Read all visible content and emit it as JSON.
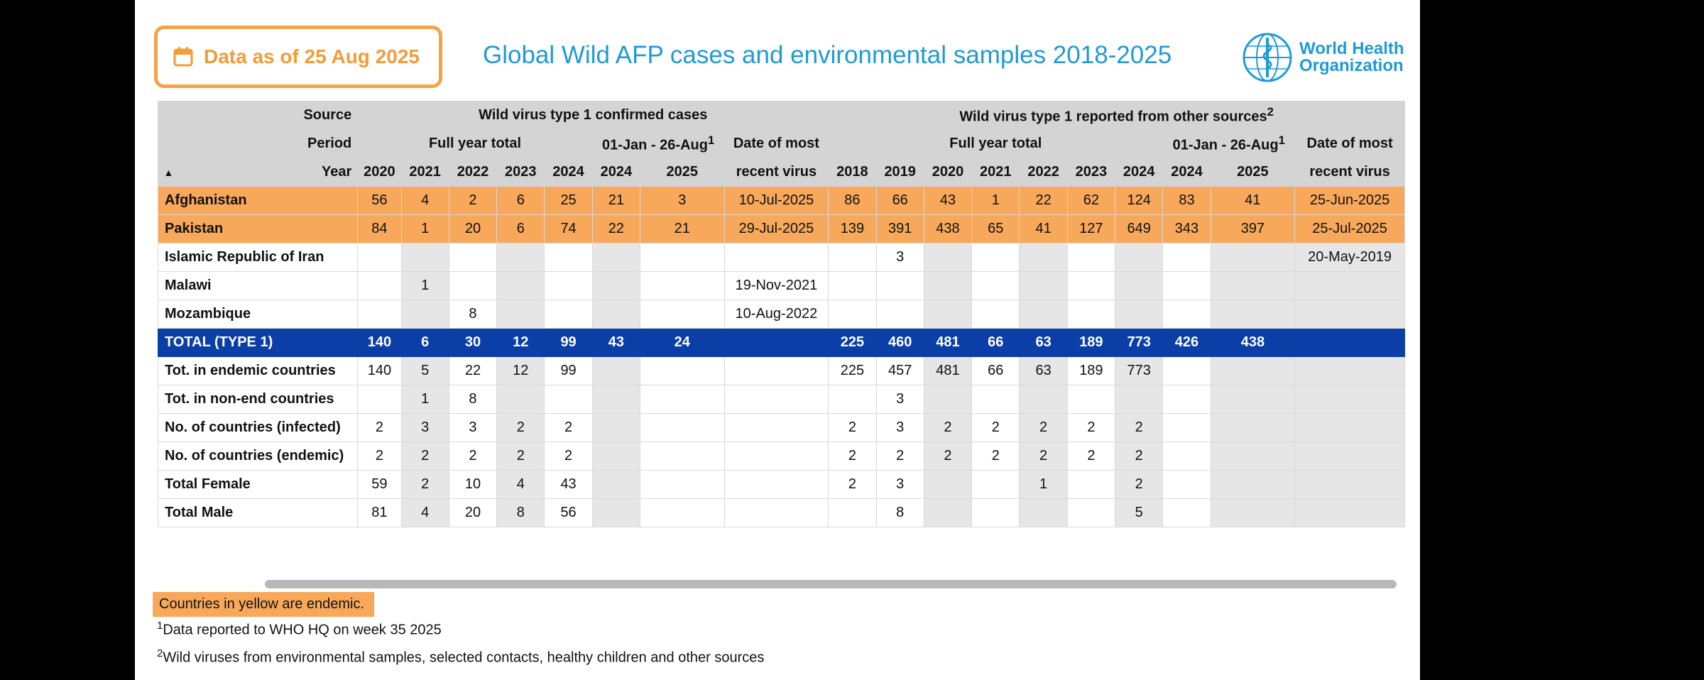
{
  "header": {
    "date_label": "Data as of 25 Aug 2025",
    "title": "Global Wild AFP cases and environmental samples 2018-2025",
    "logo_line1": "World Health",
    "logo_line2": "Organization"
  },
  "table": {
    "row_labels": {
      "source": "Source",
      "period": "Period",
      "year": "Year"
    },
    "source_groups": {
      "afp": "Wild virus type 1 confirmed cases",
      "env": "Wild virus type 1 reported from other sources",
      "env_sup": "2"
    },
    "periods": {
      "afp_full": "Full year total",
      "afp_ytd": "01-Jan - 26-Aug",
      "ytd_sup": "1",
      "date1": "Date of most",
      "env_full": "Full year total",
      "env_ytd": "01-Jan - 26-Aug",
      "date2": "Date of most"
    },
    "date_line2": "recent virus",
    "years": [
      "2020",
      "2021",
      "2022",
      "2023",
      "2024",
      "2024",
      "2025",
      "2018",
      "2019",
      "2020",
      "2021",
      "2022",
      "2023",
      "2024",
      "2024",
      "2025"
    ],
    "rows": [
      {
        "name": "Afghanistan",
        "kind": "endemic",
        "afp": [
          "56",
          "4",
          "2",
          "6",
          "25",
          "21",
          "3"
        ],
        "date1": "10-Jul-2025",
        "env": [
          "86",
          "66",
          "43",
          "1",
          "22",
          "62",
          "124",
          "83",
          "41"
        ],
        "date2": "25-Jun-2025"
      },
      {
        "name": "Pakistan",
        "kind": "endemic",
        "afp": [
          "84",
          "1",
          "20",
          "6",
          "74",
          "22",
          "21"
        ],
        "date1": "29-Jul-2025",
        "env": [
          "139",
          "391",
          "438",
          "65",
          "41",
          "127",
          "649",
          "343",
          "397"
        ],
        "date2": "25-Jul-2025"
      },
      {
        "name": "Islamic Republic of Iran",
        "kind": "normal",
        "afp": [
          "",
          "",
          "",
          "",
          "",
          "",
          ""
        ],
        "date1": "",
        "env": [
          "",
          "3",
          "",
          "",
          "",
          "",
          "",
          "",
          ""
        ],
        "date2": "20-May-2019"
      },
      {
        "name": "Malawi",
        "kind": "normal",
        "afp": [
          "",
          "1",
          "",
          "",
          "",
          "",
          ""
        ],
        "date1": "19-Nov-2021",
        "env": [
          "",
          "",
          "",
          "",
          "",
          "",
          "",
          "",
          ""
        ],
        "date2": ""
      },
      {
        "name": "Mozambique",
        "kind": "normal",
        "afp": [
          "",
          "",
          "8",
          "",
          "",
          "",
          ""
        ],
        "date1": "10-Aug-2022",
        "env": [
          "",
          "",
          "",
          "",
          "",
          "",
          "",
          "",
          ""
        ],
        "date2": ""
      },
      {
        "name": "TOTAL (TYPE 1)",
        "kind": "total",
        "afp": [
          "140",
          "6",
          "30",
          "12",
          "99",
          "43",
          "24"
        ],
        "date1": "",
        "env": [
          "225",
          "460",
          "481",
          "66",
          "63",
          "189",
          "773",
          "426",
          "438"
        ],
        "date2": ""
      },
      {
        "name": "Tot. in endemic countries",
        "kind": "normal",
        "afp": [
          "140",
          "5",
          "22",
          "12",
          "99",
          "",
          ""
        ],
        "date1": "",
        "env": [
          "225",
          "457",
          "481",
          "66",
          "63",
          "189",
          "773",
          "",
          ""
        ],
        "date2": ""
      },
      {
        "name": "Tot. in non-end countries",
        "kind": "normal",
        "afp": [
          "",
          "1",
          "8",
          "",
          "",
          "",
          ""
        ],
        "date1": "",
        "env": [
          "",
          "3",
          "",
          "",
          "",
          "",
          "",
          "",
          ""
        ],
        "date2": ""
      },
      {
        "name": "No. of countries (infected)",
        "kind": "normal",
        "afp": [
          "2",
          "3",
          "3",
          "2",
          "2",
          "",
          ""
        ],
        "date1": "",
        "env": [
          "2",
          "3",
          "2",
          "2",
          "2",
          "2",
          "2",
          "",
          ""
        ],
        "date2": ""
      },
      {
        "name": "No. of countries (endemic)",
        "kind": "normal",
        "afp": [
          "2",
          "2",
          "2",
          "2",
          "2",
          "",
          ""
        ],
        "date1": "",
        "env": [
          "2",
          "2",
          "2",
          "2",
          "2",
          "2",
          "2",
          "",
          ""
        ],
        "date2": ""
      },
      {
        "name": "Total Female",
        "kind": "normal",
        "afp": [
          "59",
          "2",
          "10",
          "4",
          "43",
          "",
          ""
        ],
        "date1": "",
        "env": [
          "2",
          "3",
          "",
          "",
          "1",
          "",
          "2",
          "",
          ""
        ],
        "date2": ""
      },
      {
        "name": "Total Male",
        "kind": "normal",
        "afp": [
          "81",
          "4",
          "20",
          "8",
          "56",
          "",
          ""
        ],
        "date1": "",
        "env": [
          "",
          "8",
          "",
          "",
          "",
          "",
          "5",
          "",
          ""
        ],
        "date2": ""
      }
    ]
  },
  "notes": {
    "endemic": "Countries in yellow are endemic.",
    "fn1_mark": "1",
    "fn1": "Data reported to WHO HQ on week 35 2025",
    "fn2_mark": "2",
    "fn2": "Wild viruses from environmental samples, selected contacts, healthy children and other sources"
  },
  "colors": {
    "accent_orange": "#f8a85a",
    "title_blue": "#1f9ad6",
    "total_row": "#0b3ea6",
    "shade_gray": "#e6e6e6"
  },
  "icons": [
    "calendar-icon",
    "who-emblem-icon",
    "sort-arrow-icon"
  ]
}
